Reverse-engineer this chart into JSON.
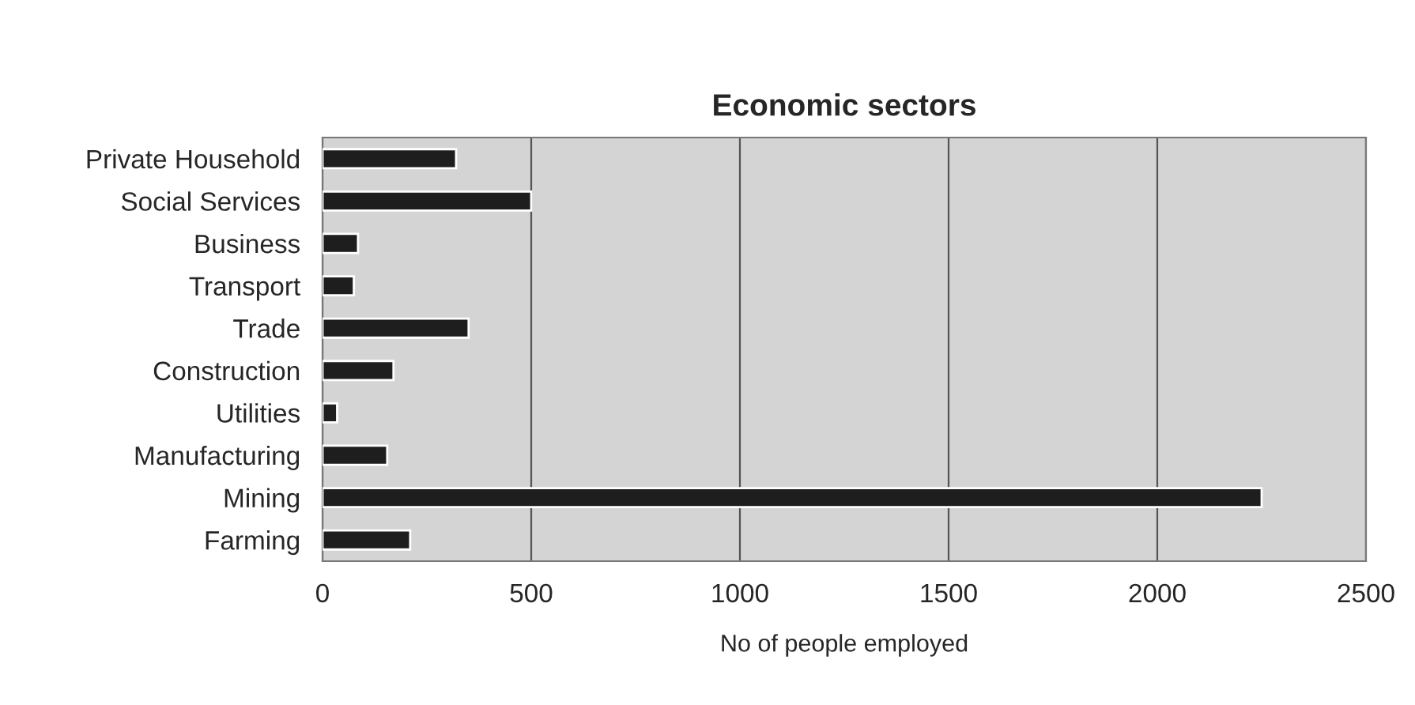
{
  "chart_data": {
    "type": "bar",
    "orientation": "horizontal",
    "title": "Economic sectors",
    "xlabel": "No of people employed",
    "categories": [
      "Private Household",
      "Social Services",
      "Business",
      "Transport",
      "Trade",
      "Construction",
      "Utilities",
      "Manufacturing",
      "Mining",
      "Farming"
    ],
    "values": [
      320,
      500,
      85,
      75,
      350,
      170,
      35,
      155,
      2250,
      210
    ],
    "color": "#1e1e1e",
    "xlim": [
      0,
      2500
    ],
    "xticks": [
      0,
      500,
      1000,
      1500,
      2000,
      2500
    ],
    "grid": "x"
  }
}
